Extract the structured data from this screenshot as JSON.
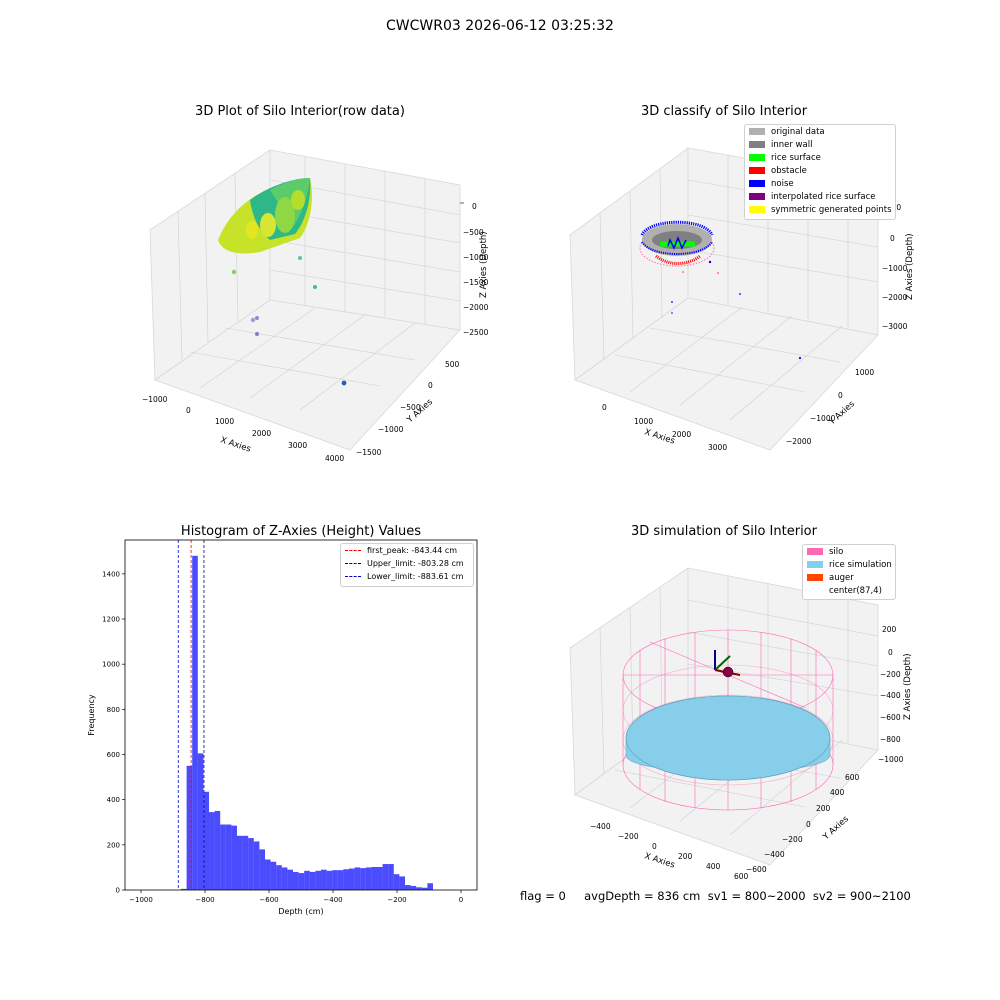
{
  "header": {
    "title": "CWCWR03 2026-06-12 03:25:32"
  },
  "panels": {
    "raw": {
      "title": "3D Plot of Silo Interior(row data)",
      "xlabel": "X Axies",
      "ylabel": "Y Axies",
      "zlabel": "Z Axies (Depth)",
      "xticks": [
        "−1000",
        "0",
        "1000",
        "2000",
        "3000",
        "4000"
      ],
      "yticks": [
        "500",
        "0",
        "−500",
        "−1000",
        "−1500"
      ],
      "zticks": [
        "0",
        "−500",
        "−1000",
        "−1500",
        "−2000",
        "−2500"
      ]
    },
    "classify": {
      "title": "3D classify of Silo Interior",
      "xlabel": "X Axies",
      "ylabel": "Y Axies",
      "zlabel": "Z Axies (Depth)",
      "xticks": [
        "0",
        "1000",
        "2000",
        "3000"
      ],
      "yticks": [
        "1000",
        "0",
        "−1000",
        "−2000"
      ],
      "zticks": [
        "1000",
        "0",
        "−1000",
        "−2000",
        "−3000"
      ],
      "legend": [
        {
          "label": "original data",
          "color": "#b0b0b0"
        },
        {
          "label": "inner wall",
          "color": "#808080"
        },
        {
          "label": "rice surface",
          "color": "#00ff00"
        },
        {
          "label": "obstacle",
          "color": "#ff0000"
        },
        {
          "label": "noise",
          "color": "#0000ff"
        },
        {
          "label": "interpolated rice surface",
          "color": "#800080"
        },
        {
          "label": "symmetric generated points",
          "color": "#ffff00"
        }
      ]
    },
    "simulation": {
      "title": "3D simulation of Silo Interior",
      "xlabel": "X Axies",
      "ylabel": "Y Axies",
      "zlabel": "Z Axies (Depth)",
      "xticks": [
        "−400",
        "−200",
        "0",
        "200",
        "400",
        "600"
      ],
      "yticks": [
        "600",
        "400",
        "200",
        "0",
        "−200",
        "−400",
        "−600"
      ],
      "zticks": [
        "200",
        "0",
        "−200",
        "−400",
        "−600",
        "−800",
        "−1000"
      ],
      "legend": [
        {
          "label": "silo",
          "color": "#ff69b4"
        },
        {
          "label": "rice simulation",
          "color": "#87ceeb"
        },
        {
          "label": "auger",
          "color": "#ff4500"
        },
        {
          "label": "center(87,4)",
          "color": ""
        }
      ]
    }
  },
  "chart_data": {
    "type": "bar",
    "title": "Histogram of Z-Axies (Height) Values",
    "xlabel": "Depth (cm)",
    "ylabel": "Frequency",
    "xlim": [
      -1050,
      50
    ],
    "ylim": [
      0,
      1550
    ],
    "xticks": [
      -1000,
      -800,
      -600,
      -400,
      -200,
      0
    ],
    "yticks": [
      0,
      200,
      400,
      600,
      800,
      1000,
      1200,
      1400
    ],
    "bin_width": 17.5,
    "bin_starts": [
      -875,
      -857.5,
      -840,
      -822.5,
      -805,
      -787.5,
      -770,
      -752.5,
      -735,
      -717.5,
      -700,
      -682.5,
      -665,
      -647.5,
      -630,
      -612.5,
      -595,
      -577.5,
      -560,
      -542.5,
      -525,
      -507.5,
      -490,
      -472.5,
      -455,
      -437.5,
      -420,
      -402.5,
      -385,
      -367.5,
      -350,
      -332.5,
      -315,
      -297.5,
      -280,
      -262.5,
      -245,
      -227.5,
      -210,
      -192.5,
      -175,
      -157.5,
      -140,
      -122.5,
      -105,
      -87.5,
      -70,
      -52.5,
      -35,
      -17.5
    ],
    "counts": [
      5,
      550,
      1480,
      605,
      435,
      345,
      350,
      290,
      290,
      285,
      240,
      240,
      230,
      215,
      180,
      135,
      125,
      110,
      100,
      90,
      80,
      75,
      85,
      80,
      85,
      90,
      85,
      88,
      88,
      92,
      95,
      100,
      97,
      100,
      102,
      102,
      115,
      115,
      70,
      60,
      22,
      18,
      12,
      10,
      30,
      0,
      0,
      0,
      0,
      0
    ],
    "vlines": [
      {
        "x": -843.44,
        "label": "first_peak: -843.44 cm",
        "color": "#ff0000"
      },
      {
        "x": -803.28,
        "label": "Upper_limit: -803.28 cm",
        "color": "#00008b"
      },
      {
        "x": -883.61,
        "label": "Lower_limit: -883.61 cm",
        "color": "#0000cd"
      }
    ],
    "bar_color": "#0000ff"
  },
  "footer": {
    "flag_text": "flag = 0     avgDepth = 836 cm  sv1 = 800~2000  sv2 = 900~2100"
  }
}
